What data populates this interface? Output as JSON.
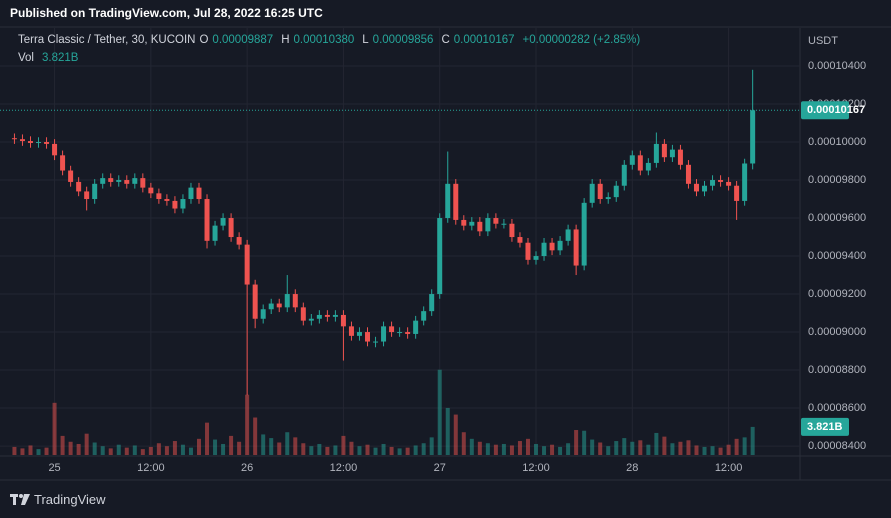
{
  "header": {
    "published": "Published on TradingView.com, Jul 28, 2022 16:25 UTC",
    "symbol": "Terra Classic / Tether, 30, KUCOIN",
    "o_label": "O",
    "o": "0.00009887",
    "h_label": "H",
    "h": "0.00010380",
    "l_label": "L",
    "l": "0.00009856",
    "c_label": "C",
    "c": "0.00010167",
    "change": "+0.00000282 (+2.85%)",
    "vol_label": "Vol",
    "vol": "3.821B"
  },
  "footer": {
    "brand": "TradingView"
  },
  "chart_data": {
    "type": "candlestick",
    "y_axis_label": "USDT",
    "up_color": "#26a69a",
    "down_color": "#ef5350",
    "grid": true,
    "last_price_line": true,
    "xlim": [
      -6.8,
      92.9
    ],
    "xticks": [
      {
        "value": 0,
        "label": "25"
      },
      {
        "value": 12,
        "label": "12:00"
      },
      {
        "value": 24,
        "label": "26"
      },
      {
        "value": 36,
        "label": "12:00"
      },
      {
        "value": 48,
        "label": "27"
      },
      {
        "value": 60,
        "label": "12:00"
      },
      {
        "value": 72,
        "label": "28"
      },
      {
        "value": 84,
        "label": "12:00"
      }
    ],
    "ylim": [
      8.353e-05,
      0.000106
    ],
    "yticks": [
      {
        "value": 0.000104,
        "label": "0.00010400"
      },
      {
        "value": 0.000102,
        "label": "0.00010200"
      },
      {
        "value": 0.0001,
        "label": "0.00010000"
      },
      {
        "value": 9.8e-05,
        "label": "0.00009800"
      },
      {
        "value": 9.6e-05,
        "label": "0.00009600"
      },
      {
        "value": 9.4e-05,
        "label": "0.00009400"
      },
      {
        "value": 9.2e-05,
        "label": "0.00009200"
      },
      {
        "value": 9e-05,
        "label": "0.00009000"
      },
      {
        "value": 8.8e-05,
        "label": "0.00008800"
      },
      {
        "value": 8.6e-05,
        "label": "0.00008600"
      },
      {
        "value": 8.4e-05,
        "label": "0.00008400"
      }
    ],
    "x": [
      -5,
      -4,
      -3,
      -2,
      -1,
      0,
      1,
      2,
      3,
      4,
      5,
      6,
      7,
      8,
      9,
      10,
      11,
      12,
      13,
      14,
      15,
      16,
      17,
      18,
      19,
      20,
      21,
      22,
      23,
      24,
      25,
      26,
      27,
      28,
      29,
      30,
      31,
      32,
      33,
      34,
      35,
      36,
      37,
      38,
      39,
      40,
      41,
      42,
      43,
      44,
      45,
      46,
      47,
      48,
      49,
      50,
      51,
      52,
      53,
      54,
      55,
      56,
      57,
      58,
      59,
      60,
      61,
      62,
      63,
      64,
      65,
      66,
      67,
      68,
      69,
      70,
      71,
      72,
      73,
      74,
      75,
      76,
      77,
      78,
      79,
      80,
      81,
      82,
      83,
      84,
      85,
      86,
      87
    ],
    "open": [
      0.0001002,
      0.00010015,
      0.00010005,
      9.995e-05,
      0.0001,
      9.99e-05,
      9.93e-05,
      9.85e-05,
      9.79e-05,
      9.74e-05,
      9.7e-05,
      9.78e-05,
      9.81e-05,
      9.79e-05,
      9.8e-05,
      9.78e-05,
      9.81e-05,
      9.76e-05,
      9.73e-05,
      9.7e-05,
      9.69e-05,
      9.65e-05,
      9.7e-05,
      9.76e-05,
      9.7e-05,
      9.48e-05,
      9.56e-05,
      9.6e-05,
      9.5e-05,
      9.46e-05,
      9.25e-05,
      9.07e-05,
      9.12e-05,
      9.15e-05,
      9.13e-05,
      9.2e-05,
      9.13e-05,
      9.06e-05,
      9.07e-05,
      9.09e-05,
      9.08e-05,
      9.09e-05,
      9.03e-05,
      8.98e-05,
      9e-05,
      8.95e-05,
      8.95e-05,
      9.03e-05,
      9e-05,
      9e-05,
      8.99e-05,
      9.06e-05,
      9.11e-05,
      9.2e-05,
      9.6e-05,
      9.78e-05,
      9.59e-05,
      9.56e-05,
      9.58e-05,
      9.53e-05,
      9.6e-05,
      9.57e-05,
      9.57e-05,
      9.5e-05,
      9.47e-05,
      9.38e-05,
      9.4e-05,
      9.47e-05,
      9.43e-05,
      9.48e-05,
      9.54e-05,
      9.35e-05,
      9.68e-05,
      9.78e-05,
      9.7e-05,
      9.71e-05,
      9.77e-05,
      9.88e-05,
      9.93e-05,
      9.85e-05,
      9.89e-05,
      9.99e-05,
      9.92e-05,
      9.96e-05,
      9.88e-05,
      9.78e-05,
      9.74e-05,
      9.77e-05,
      9.8e-05,
      9.79e-05,
      9.77e-05,
      9.69e-05,
      9.887e-05
    ],
    "high": [
      0.00010045,
      0.0001004,
      0.0001003,
      0.00010025,
      0.00010025,
      0.00010015,
      9.955e-05,
      9.875e-05,
      9.815e-05,
      9.765e-05,
      9.805e-05,
      9.835e-05,
      9.835e-05,
      9.825e-05,
      9.825e-05,
      9.835e-05,
      9.835e-05,
      9.785e-05,
      9.755e-05,
      9.725e-05,
      9.715e-05,
      9.725e-05,
      9.785e-05,
      9.785e-05,
      9.725e-05,
      9.585e-05,
      9.625e-05,
      9.625e-05,
      9.525e-05,
      9.485e-05,
      9.275e-05,
      9.145e-05,
      9.175e-05,
      9.175e-05,
      9.3e-05,
      9.225e-05,
      9.155e-05,
      9.095e-05,
      9.115e-05,
      9.115e-05,
      9.115e-05,
      9.115e-05,
      9.055e-05,
      9.025e-05,
      9.025e-05,
      8.975e-05,
      9.055e-05,
      9.055e-05,
      9.025e-05,
      9.025e-05,
      9.085e-05,
      9.135e-05,
      9.225e-05,
      9.625e-05,
      9.95e-05,
      9.805e-05,
      9.615e-05,
      9.605e-05,
      9.605e-05,
      9.625e-05,
      9.625e-05,
      9.595e-05,
      9.595e-05,
      9.525e-05,
      9.495e-05,
      9.425e-05,
      9.495e-05,
      9.495e-05,
      9.505e-05,
      9.565e-05,
      9.565e-05,
      9.705e-05,
      9.805e-05,
      9.805e-05,
      9.735e-05,
      9.795e-05,
      9.905e-05,
      9.955e-05,
      9.955e-05,
      9.915e-05,
      0.0001005,
      0.00010015,
      9.985e-05,
      9.985e-05,
      9.905e-05,
      9.805e-05,
      9.795e-05,
      9.825e-05,
      9.825e-05,
      9.815e-05,
      9.795e-05,
      9.912e-05,
      0.0001038
    ],
    "low": [
      9.99e-05,
      9.98e-05,
      9.97e-05,
      9.97e-05,
      9.965e-05,
      9.905e-05,
      9.825e-05,
      9.765e-05,
      9.715e-05,
      9.64e-05,
      9.675e-05,
      9.755e-05,
      9.765e-05,
      9.765e-05,
      9.755e-05,
      9.755e-05,
      9.735e-05,
      9.705e-05,
      9.675e-05,
      9.665e-05,
      9.625e-05,
      9.625e-05,
      9.675e-05,
      9.675e-05,
      9.44e-05,
      9.455e-05,
      9.535e-05,
      9.475e-05,
      9.435e-05,
      8.668e-05,
      9.02e-05,
      9.045e-05,
      9.095e-05,
      9.105e-05,
      9.105e-05,
      9.105e-05,
      9.035e-05,
      9.035e-05,
      9.045e-05,
      9.055e-05,
      9.055e-05,
      8.85e-05,
      8.955e-05,
      8.955e-05,
      8.925e-05,
      8.92e-05,
      8.925e-05,
      8.975e-05,
      8.975e-05,
      8.965e-05,
      8.965e-05,
      9.035e-05,
      9.085e-05,
      9.175e-05,
      9.575e-05,
      9.565e-05,
      9.535e-05,
      9.535e-05,
      9.505e-05,
      9.505e-05,
      9.545e-05,
      9.545e-05,
      9.475e-05,
      9.445e-05,
      9.355e-05,
      9.355e-05,
      9.375e-05,
      9.405e-05,
      9.405e-05,
      9.455e-05,
      9.3e-05,
      9.325e-05,
      9.655e-05,
      9.675e-05,
      9.675e-05,
      9.685e-05,
      9.745e-05,
      9.855e-05,
      9.825e-05,
      9.825e-05,
      9.865e-05,
      9.895e-05,
      9.895e-05,
      9.855e-05,
      9.755e-05,
      9.715e-05,
      9.715e-05,
      9.745e-05,
      9.765e-05,
      9.745e-05,
      9.59e-05,
      9.665e-05,
      9.856e-05
    ],
    "close": [
      0.00010015,
      0.00010005,
      9.995e-05,
      0.0001,
      9.99e-05,
      9.93e-05,
      9.85e-05,
      9.79e-05,
      9.74e-05,
      9.7e-05,
      9.78e-05,
      9.81e-05,
      9.79e-05,
      9.8e-05,
      9.78e-05,
      9.81e-05,
      9.76e-05,
      9.73e-05,
      9.7e-05,
      9.69e-05,
      9.65e-05,
      9.7e-05,
      9.76e-05,
      9.7e-05,
      9.48e-05,
      9.56e-05,
      9.6e-05,
      9.5e-05,
      9.46e-05,
      9.25e-05,
      9.07e-05,
      9.12e-05,
      9.15e-05,
      9.13e-05,
      9.2e-05,
      9.13e-05,
      9.06e-05,
      9.07e-05,
      9.09e-05,
      9.08e-05,
      9.09e-05,
      9.03e-05,
      8.98e-05,
      9e-05,
      8.95e-05,
      8.95e-05,
      9.03e-05,
      9e-05,
      9e-05,
      8.99e-05,
      9.06e-05,
      9.11e-05,
      9.2e-05,
      9.6e-05,
      9.78e-05,
      9.59e-05,
      9.56e-05,
      9.58e-05,
      9.53e-05,
      9.6e-05,
      9.57e-05,
      9.57e-05,
      9.5e-05,
      9.47e-05,
      9.38e-05,
      9.4e-05,
      9.47e-05,
      9.43e-05,
      9.48e-05,
      9.54e-05,
      9.35e-05,
      9.68e-05,
      9.78e-05,
      9.7e-05,
      9.71e-05,
      9.77e-05,
      9.88e-05,
      9.93e-05,
      9.85e-05,
      9.89e-05,
      9.99e-05,
      9.92e-05,
      9.96e-05,
      9.88e-05,
      9.78e-05,
      9.74e-05,
      9.77e-05,
      9.8e-05,
      9.79e-05,
      9.77e-05,
      9.69e-05,
      9.887e-05,
      0.00010167
    ],
    "volume": {
      "ylim": [
        0,
        20
      ],
      "values": [
        1.1,
        0.9,
        1.3,
        0.8,
        1.0,
        7.1,
        2.6,
        1.8,
        1.5,
        2.9,
        1.7,
        1.2,
        0.9,
        1.4,
        1.0,
        1.3,
        0.8,
        1.1,
        1.6,
        1.2,
        1.9,
        1.4,
        1.0,
        2.2,
        4.4,
        2.1,
        1.5,
        2.6,
        1.8,
        8.2,
        5.1,
        2.8,
        2.3,
        1.7,
        3.1,
        2.4,
        1.6,
        1.2,
        1.5,
        1.1,
        1.3,
        2.6,
        1.8,
        1.2,
        1.4,
        1.0,
        1.5,
        1.1,
        0.9,
        1.0,
        1.3,
        1.6,
        2.4,
        11.6,
        6.4,
        5.5,
        3.1,
        2.2,
        1.8,
        1.6,
        1.4,
        1.5,
        1.3,
        1.9,
        2.2,
        1.5,
        1.2,
        1.4,
        1.1,
        1.6,
        3.4,
        3.3,
        2.1,
        1.7,
        1.2,
        1.9,
        2.3,
        1.8,
        2.0,
        1.4,
        3.0,
        2.5,
        1.6,
        1.8,
        2.0,
        1.3,
        1.1,
        1.2,
        1.0,
        1.4,
        2.2,
        2.4,
        3.821
      ]
    }
  }
}
